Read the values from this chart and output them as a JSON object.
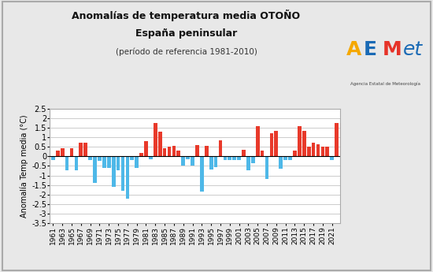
{
  "years": [
    1961,
    1962,
    1963,
    1964,
    1965,
    1966,
    1967,
    1968,
    1969,
    1970,
    1971,
    1972,
    1973,
    1974,
    1975,
    1976,
    1977,
    1978,
    1979,
    1980,
    1981,
    1982,
    1983,
    1984,
    1985,
    1986,
    1987,
    1988,
    1989,
    1990,
    1991,
    1992,
    1993,
    1994,
    1995,
    1996,
    1997,
    1998,
    1999,
    2000,
    2001,
    2002,
    2003,
    2004,
    2005,
    2006,
    2007,
    2008,
    2009,
    2010,
    2011,
    2012,
    2013,
    2014,
    2015,
    2016,
    2017,
    2018,
    2019,
    2020,
    2021,
    2022
  ],
  "values": [
    -0.2,
    0.3,
    0.45,
    -0.75,
    0.45,
    -0.75,
    0.7,
    0.7,
    -0.2,
    -1.4,
    -0.25,
    -0.6,
    -0.6,
    -1.6,
    -0.75,
    -1.8,
    -2.2,
    -0.2,
    -0.6,
    0.2,
    0.8,
    -0.15,
    1.75,
    1.3,
    0.45,
    0.5,
    0.55,
    0.3,
    -0.5,
    -0.15,
    -0.5,
    0.6,
    -1.85,
    0.55,
    -0.7,
    -0.55,
    0.85,
    -0.2,
    -0.2,
    -0.2,
    -0.2,
    0.35,
    -0.75,
    -0.35,
    1.6,
    0.3,
    -1.2,
    1.2,
    1.35,
    -0.65,
    -0.2,
    -0.2,
    0.3,
    1.6,
    1.35,
    0.5,
    0.7,
    0.65,
    0.5,
    0.5,
    -0.2,
    1.75
  ],
  "title_line1": "Anomalías de temperatura media OTOÑO",
  "title_line2": "España peninsular",
  "title_line3": "(período de referencia 1981-2010)",
  "ylabel": "Anomalía Temp media (°C)",
  "color_positive": "#e8392a",
  "color_negative": "#4eb8e8",
  "ylim": [
    -3.5,
    2.5
  ],
  "yticks": [
    -3.5,
    -3.0,
    -2.5,
    -2.0,
    -1.5,
    -1.0,
    -0.5,
    0.0,
    0.5,
    1.0,
    1.5,
    2.0,
    2.5
  ],
  "bg_color": "#e8e8e8",
  "plot_bg_color": "#ffffff",
  "grid_color": "#cccccc",
  "border_color": "#aaaaaa"
}
